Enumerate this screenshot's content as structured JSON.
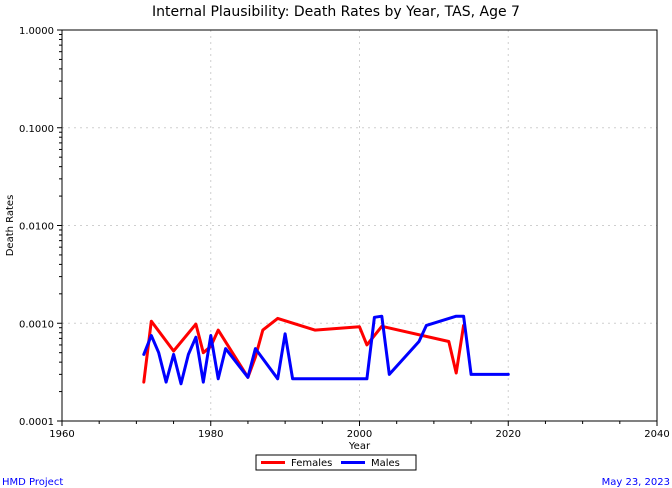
{
  "chart_data": {
    "type": "line",
    "title": "Internal Plausibility: Death Rates by Year, TAS, Age 7",
    "xlabel": "Year",
    "ylabel": "Death Rates",
    "x_scale": "linear",
    "y_scale": "log",
    "xlim": [
      1960,
      2040
    ],
    "ylim": [
      0.0001,
      1.0
    ],
    "x_ticks": [
      "1960",
      "1980",
      "2000",
      "2020",
      "2040"
    ],
    "x_tick_values": [
      1960,
      1980,
      2000,
      2020,
      2040
    ],
    "y_ticks": [
      "1.0000",
      "0.1000",
      "0.0100",
      "0.0010",
      "0.0001"
    ],
    "y_tick_values": [
      1.0,
      0.1,
      0.01,
      0.001,
      0.0001
    ],
    "grid": true,
    "legend_position": "bottom-center",
    "series": [
      {
        "name": "Females",
        "color": "#ff0000",
        "x": [
          1971,
          1972,
          1975,
          1978,
          1979,
          1980,
          1981,
          1985,
          1986,
          1987,
          1989,
          1994,
          2000,
          2001,
          2003,
          2012,
          2013,
          2014
        ],
        "y": [
          0.00025,
          0.00105,
          0.00052,
          0.00098,
          0.0005,
          0.00058,
          0.00085,
          0.00028,
          0.00045,
          0.00085,
          0.00112,
          0.00085,
          0.00092,
          0.0006,
          0.00093,
          0.00065,
          0.00031,
          0.00095
        ]
      },
      {
        "name": "Males",
        "color": "#0000ff",
        "x": [
          1971,
          1972,
          1973,
          1974,
          1975,
          1976,
          1977,
          1978,
          1979,
          1980,
          1981,
          1982,
          1985,
          1986,
          1989,
          1990,
          1991,
          2001,
          2002,
          2003,
          2004,
          2008,
          2009,
          2013,
          2014,
          2015,
          2020
        ],
        "y": [
          0.00048,
          0.00075,
          0.0005,
          0.00025,
          0.00048,
          0.00024,
          0.00048,
          0.00072,
          0.00025,
          0.00075,
          0.00027,
          0.00055,
          0.00028,
          0.00055,
          0.00027,
          0.00078,
          0.00027,
          0.00027,
          0.00115,
          0.00118,
          0.0003,
          0.00065,
          0.00095,
          0.00118,
          0.00118,
          0.0003,
          0.0003
        ]
      }
    ]
  },
  "footer": {
    "left": "HMD Project",
    "right": "May 23, 2023",
    "color": "#0000ff"
  }
}
